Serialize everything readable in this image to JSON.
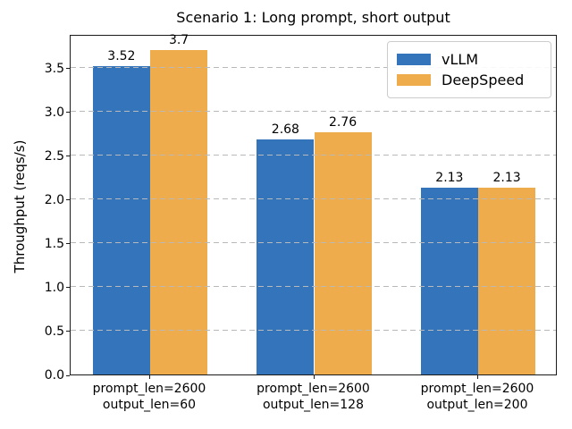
{
  "chart_data": {
    "type": "bar",
    "title": "Scenario 1: Long prompt, short output",
    "xlabel": "",
    "ylabel": "Throughput (reqs/s)",
    "categories": [
      [
        "prompt_len=2600",
        "output_len=60"
      ],
      [
        "prompt_len=2600",
        "output_len=128"
      ],
      [
        "prompt_len=2600",
        "output_len=200"
      ]
    ],
    "series": [
      {
        "name": "vLLM",
        "color": "#3374bb",
        "values": [
          3.52,
          2.68,
          2.13
        ]
      },
      {
        "name": "DeepSpeed",
        "color": "#eeac4d",
        "values": [
          3.7,
          2.76,
          2.13
        ]
      }
    ],
    "value_labels": [
      [
        "3.52",
        "2.68",
        "2.13"
      ],
      [
        "3.7",
        "2.76",
        "2.13"
      ]
    ],
    "ylim": [
      0,
      3.885
    ],
    "yticks": [
      "0.0",
      "0.5",
      "1.0",
      "1.5",
      "2.0",
      "2.5",
      "3.0",
      "3.5"
    ],
    "grid": "horizontal-dashed",
    "grid_color": "#b9b9b9",
    "legend_position": "upper-right",
    "bar_group_width_units": 0.35,
    "xlim": [
      -0.485,
      2.485
    ]
  }
}
